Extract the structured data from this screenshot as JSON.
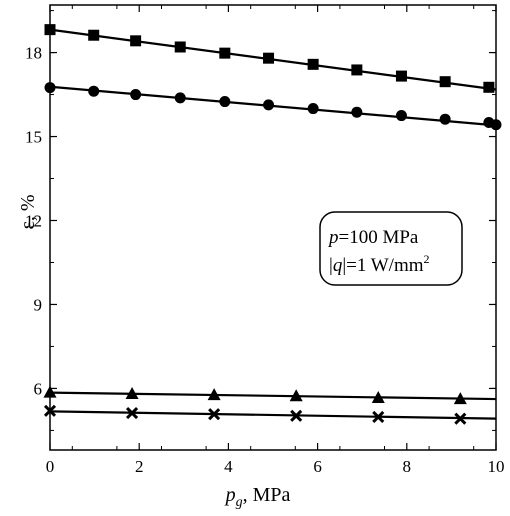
{
  "chart_data": {
    "type": "line",
    "xlabel_main": "p",
    "xlabel_sub": "g",
    "xlabel_unit": ", MPa",
    "ylabel": "ε, %",
    "xlim": [
      0,
      10
    ],
    "ylim": [
      3.8,
      19.7
    ],
    "x_ticks": [
      "0",
      "2",
      "4",
      "6",
      "8",
      "10"
    ],
    "y_ticks": [
      "6",
      "9",
      "12",
      "15",
      "18"
    ],
    "annotation": {
      "line1_var": "p",
      "line1_rest": "=100 MPa",
      "line2_pre": "|",
      "line2_var": "q",
      "line2_post": "|=1 W/mm",
      "line2_sup": "2"
    },
    "series": [
      {
        "marker": "square",
        "fit": [
          [
            0,
            18.82
          ],
          [
            10,
            16.68
          ]
        ],
        "points": [
          [
            0,
            18.82
          ],
          [
            0.98,
            18.62
          ],
          [
            1.92,
            18.42
          ],
          [
            2.92,
            18.2
          ],
          [
            3.92,
            17.98
          ],
          [
            4.9,
            17.8
          ],
          [
            5.9,
            17.58
          ],
          [
            6.88,
            17.38
          ],
          [
            7.88,
            17.16
          ],
          [
            8.86,
            16.96
          ],
          [
            9.84,
            16.76
          ]
        ]
      },
      {
        "marker": "circle",
        "fit": [
          [
            0,
            16.78
          ],
          [
            10,
            15.4
          ]
        ],
        "points": [
          [
            0,
            16.75
          ],
          [
            0.98,
            16.62
          ],
          [
            1.92,
            16.5
          ],
          [
            2.92,
            16.38
          ],
          [
            3.92,
            16.25
          ],
          [
            4.9,
            16.13
          ],
          [
            5.9,
            16.0
          ],
          [
            6.88,
            15.87
          ],
          [
            7.88,
            15.75
          ],
          [
            8.86,
            15.62
          ],
          [
            9.84,
            15.5
          ],
          [
            10,
            15.42
          ]
        ]
      },
      {
        "marker": "triangle",
        "fit": [
          [
            0,
            5.85
          ],
          [
            10,
            5.62
          ]
        ],
        "points": [
          [
            0,
            5.85
          ],
          [
            1.84,
            5.8
          ],
          [
            3.68,
            5.76
          ],
          [
            5.52,
            5.72
          ],
          [
            7.36,
            5.66
          ],
          [
            9.2,
            5.62
          ]
        ]
      },
      {
        "marker": "x",
        "fit": [
          [
            0,
            5.18
          ],
          [
            10,
            4.92
          ]
        ],
        "points": [
          [
            0,
            5.2
          ],
          [
            1.84,
            5.12
          ],
          [
            3.68,
            5.08
          ],
          [
            5.52,
            5.02
          ],
          [
            7.36,
            4.98
          ],
          [
            9.2,
            4.92
          ]
        ]
      }
    ]
  }
}
